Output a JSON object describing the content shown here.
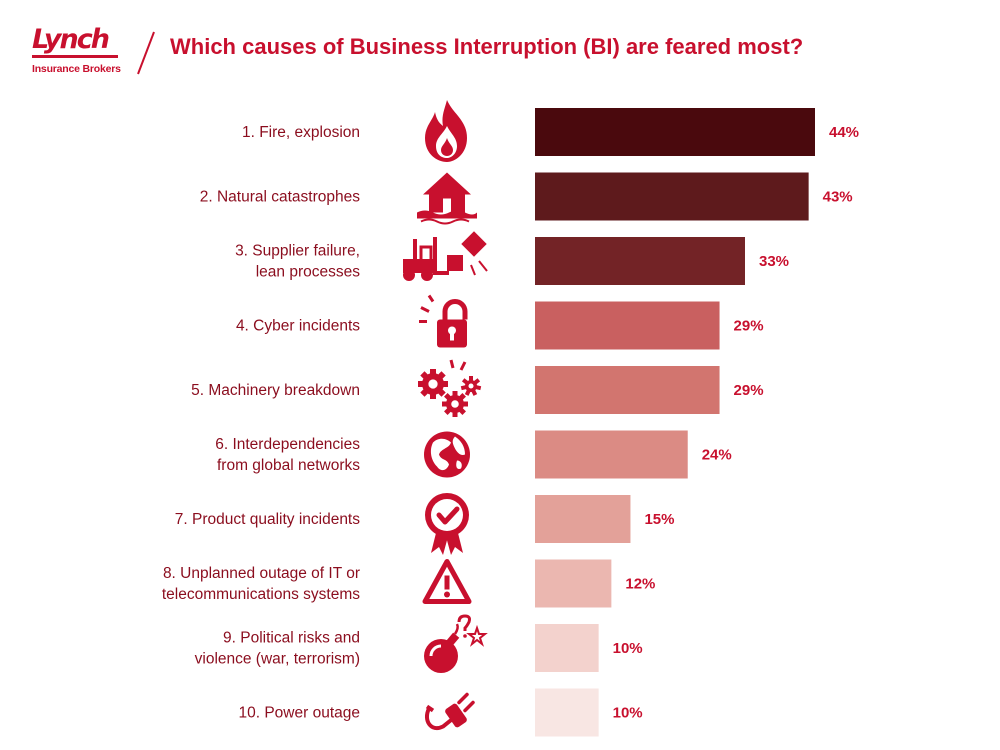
{
  "brand": {
    "logo_text": "Lynch",
    "logo_subtitle": "Insurance Brokers",
    "accent_color": "#c8102e",
    "text_color": "#8b0d1e"
  },
  "chart_data": {
    "type": "bar",
    "orientation": "horizontal",
    "title": "Which causes of Business Interruption (BI) are feared most?",
    "unit": "%",
    "categories": [
      [
        "1. Fire, explosion"
      ],
      [
        "2. Natural catastrophes"
      ],
      [
        "3. Supplier failure,",
        "lean processes"
      ],
      [
        "4. Cyber incidents"
      ],
      [
        "5. Machinery breakdown"
      ],
      [
        "6. Interdependencies",
        "from global networks"
      ],
      [
        "7. Product quality incidents"
      ],
      [
        "8. Unplanned outage of IT or",
        "telecommunications systems"
      ],
      [
        "9. Political risks and",
        "violence (war, terrorism)"
      ],
      [
        "10. Power outage"
      ]
    ],
    "values": [
      44,
      43,
      33,
      29,
      29,
      24,
      15,
      12,
      10,
      10
    ],
    "value_labels": [
      "44%",
      "43%",
      "33%",
      "29%",
      "29%",
      "24%",
      "15%",
      "12%",
      "10%",
      "10%"
    ],
    "icons": [
      "fire-icon",
      "flooded-house-icon",
      "forklift-icon",
      "padlock-icon",
      "gears-icon",
      "globe-icon",
      "quality-badge-icon",
      "warning-icon",
      "bomb-icon",
      "power-plug-icon"
    ],
    "bar_colors": [
      "#4a090d",
      "#5e1a1c",
      "#732326",
      "#c96060",
      "#d2756f",
      "#db8b84",
      "#e3a199",
      "#ebb7b0",
      "#f3d2cd",
      "#f8e6e3"
    ],
    "xlim": [
      0,
      50
    ],
    "grid": false,
    "legend": "none"
  }
}
